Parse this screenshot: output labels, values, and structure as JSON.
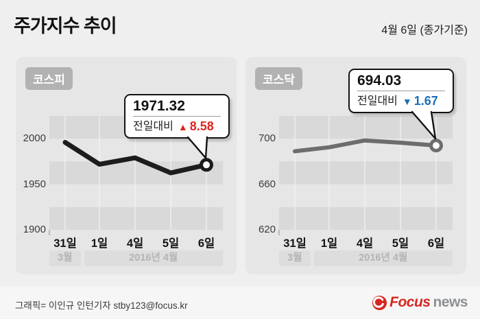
{
  "header": {
    "title": "주가지수 추이",
    "date_note": "4월 6일 (종가기준)"
  },
  "chart_data": [
    {
      "type": "line",
      "name": "kospi",
      "title": "코스피",
      "x": [
        "31일",
        "1일",
        "4일",
        "5일",
        "6일"
      ],
      "values": [
        1996,
        1972,
        1979,
        1962.5,
        1971.32
      ],
      "ylim": [
        1900,
        2025
      ],
      "yticks": [
        2000,
        1950,
        1900
      ],
      "period_labels": [
        "3월",
        "2016년 4월"
      ],
      "grid": "horizontal-bands",
      "legend": "none",
      "line_color": "#1c1c1c",
      "accent_color": "#e0231c",
      "callout": {
        "value": "1971.32",
        "change_label": "전일대비",
        "direction": "up",
        "change": "8.58"
      }
    },
    {
      "type": "line",
      "name": "kosdaq",
      "title": "코스닥",
      "x": [
        "31일",
        "1일",
        "4일",
        "5일",
        "6일"
      ],
      "values": [
        689,
        692.5,
        698.5,
        696.5,
        694.03
      ],
      "ylim": [
        620,
        720
      ],
      "yticks": [
        700,
        660,
        620
      ],
      "period_labels": [
        "3월",
        "2016년 4월"
      ],
      "grid": "horizontal-bands",
      "legend": "none",
      "line_color": "#6d6d6d",
      "accent_color": "#1d6fb8",
      "callout": {
        "value": "694.03",
        "change_label": "전일대비",
        "direction": "down",
        "change": "1.67"
      }
    }
  ],
  "footer": {
    "credit": "그래픽= 이인규 인턴기자 stby123@focus.kr",
    "logo": {
      "brand_primary": "Focus",
      "brand_secondary": "news"
    }
  },
  "colors": {
    "page_bg": "#efefef",
    "panel_bg": "#e6e6e6",
    "band_dark": "#d9d9d9",
    "gridline": "#f3f3f3",
    "axis_tick": "#8f8f8f",
    "month_bar_bg": "#dddddd",
    "month_bar_text": "#b4b4b4",
    "badge_bg": "#b2b2b2",
    "up_red": "#e0231c",
    "down_blue": "#1d6fb8",
    "logo_red": "#d7261f",
    "logo_gray": "#8d9194"
  }
}
